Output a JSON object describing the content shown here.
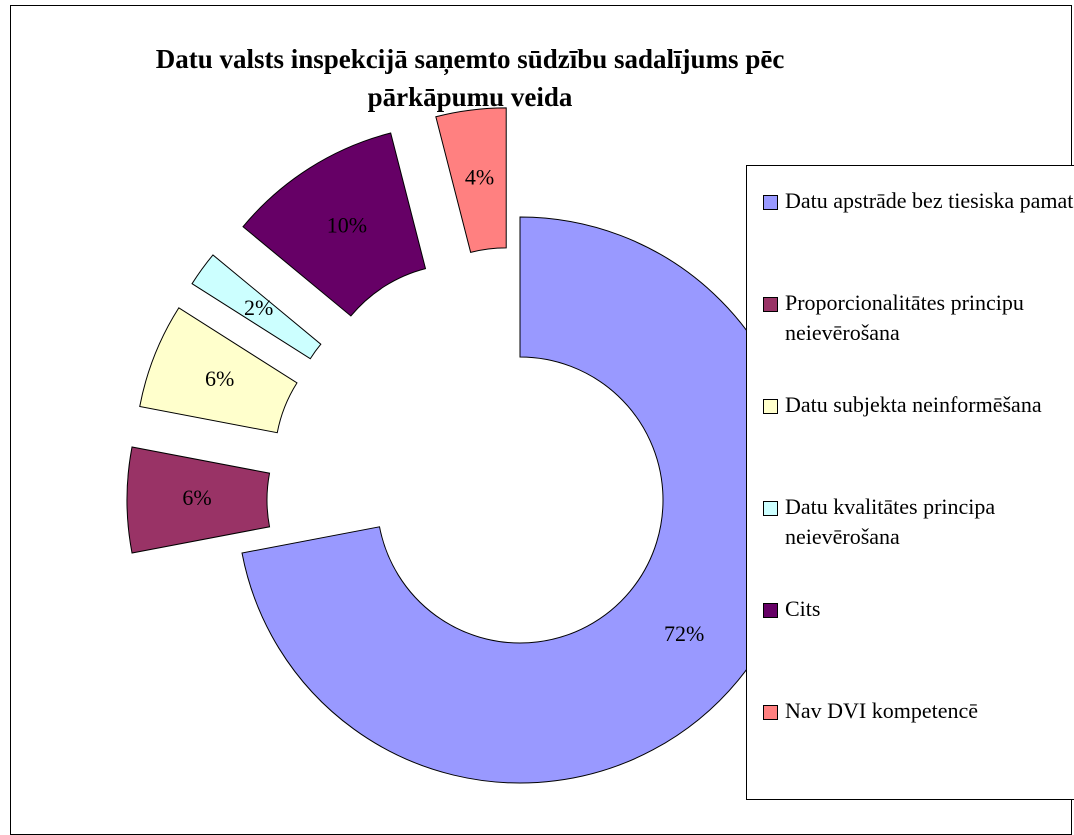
{
  "chart_data": {
    "type": "pie",
    "donut": true,
    "title": "Datu valsts inspekcijā saņemto sūdzību sadalījums pēc pārkāpumu veida",
    "categories": [
      "Datu apstrāde bez tiesiska pamata",
      "Proporcionalitātes principu neievērošana",
      "Datu subjekta neinformēšana",
      "Datu kvalitātes principa neievērošana",
      "Cits",
      "Nav DVI kompetencē"
    ],
    "values": [
      72,
      6,
      6,
      2,
      10,
      4
    ],
    "value_labels": [
      "72%",
      "6%",
      "6%",
      "2%",
      "10%",
      "4%"
    ],
    "colors": [
      "#9999ff",
      "#993366",
      "#ffffcc",
      "#ccffff",
      "#660066",
      "#ff8080"
    ],
    "legend": "right"
  }
}
